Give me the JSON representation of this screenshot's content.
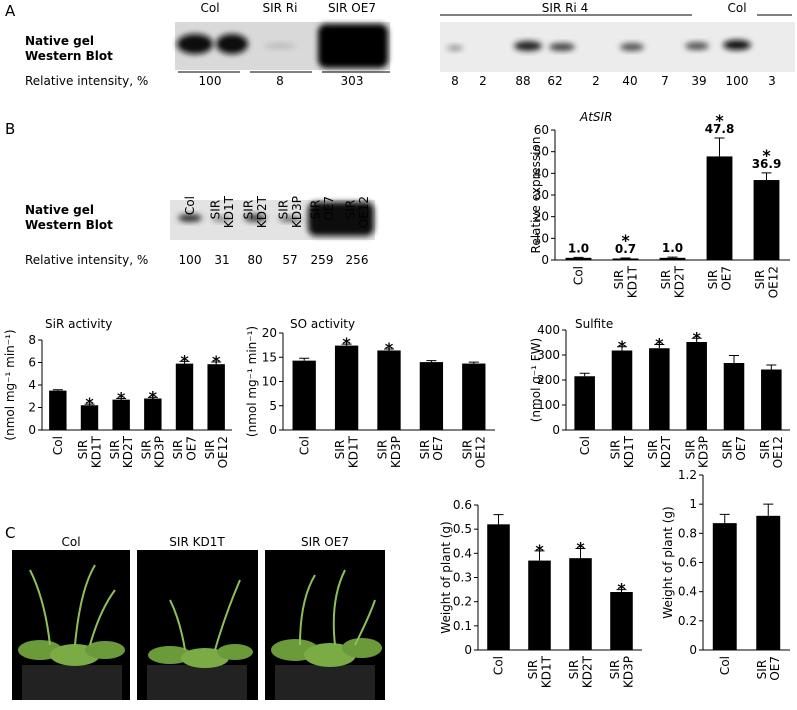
{
  "panel_labels": [
    "A",
    "B",
    "C"
  ],
  "panel_a": {
    "blot_label": [
      "Native gel",
      "Western Blot"
    ],
    "intensity_label": "Relative intensity, %",
    "left_lanes": [
      "Col",
      "SIR Ri",
      "SIR OE7"
    ],
    "left_values": [
      100,
      8,
      303
    ],
    "right_header": "SIR Ri 4",
    "right_col": "Col",
    "right_values": [
      8,
      2,
      88,
      62,
      2,
      40,
      7,
      39,
      100,
      3
    ]
  },
  "panel_b": {
    "blot_label": [
      "Native gel",
      "Western Blot"
    ],
    "intensity_label": "Relative intensity, %",
    "lanes": [
      "Col",
      "SIR KD1T",
      "SIR KD2T",
      "SIR KD3P",
      "SIR OE7",
      "SIR OE12"
    ],
    "values": [
      100,
      31,
      80,
      57,
      259,
      256
    ]
  },
  "panel_c": {
    "photo_captions": [
      "Col",
      "SIR KD1T",
      "SIR OE7"
    ]
  },
  "chart_data": [
    {
      "type": "bar",
      "title": "AtSIR",
      "ylabel": "Relative expression",
      "categories": [
        "Col",
        "SIR KD1T",
        "SIR KD2T",
        "SIR OE7",
        "SIR OE12"
      ],
      "values": [
        1.0,
        0.7,
        1.0,
        47.8,
        36.9
      ],
      "value_labels": [
        "1.0",
        "0.7",
        "1.0",
        "47.8",
        "36.9"
      ],
      "errors": [
        0.2,
        0.2,
        0.3,
        8.5,
        3.3
      ],
      "significant": [
        1,
        3,
        4
      ],
      "significance_label": "*",
      "color": "#000000",
      "ylim": [
        0,
        60
      ],
      "yticks": [
        0,
        10,
        20,
        30,
        40,
        50,
        60
      ]
    },
    {
      "type": "bar",
      "title": "SiR activity",
      "ylabel": "(nmol mg⁻¹ min⁻¹)",
      "categories": [
        "Col",
        "SIR KD1T",
        "SIR KD2T",
        "SIR KD3P",
        "SIR OE7",
        "SIR OE12"
      ],
      "values": [
        3.5,
        2.2,
        2.7,
        2.8,
        5.9,
        5.85
      ],
      "errors": [
        0.08,
        0.1,
        0.1,
        0.1,
        0.2,
        0.2
      ],
      "significant": [
        1,
        2,
        3,
        4,
        5
      ],
      "significance_label": "*",
      "color": "#000000",
      "ylim": [
        0,
        8
      ],
      "yticks": [
        0,
        2,
        4,
        6,
        8
      ]
    },
    {
      "type": "bar",
      "title": "SO activity",
      "ylabel": "(nmol mg⁻¹ min⁻¹)",
      "categories": [
        "Col",
        "SIR KD1T",
        "SIR KD3P",
        "SIR OE7",
        "SIR OE12"
      ],
      "values": [
        14.3,
        17.4,
        16.4,
        14.0,
        13.7
      ],
      "errors": [
        0.5,
        0.3,
        0.3,
        0.3,
        0.3
      ],
      "significant": [
        1,
        2
      ],
      "significance_label": "*",
      "color": "#000000",
      "ylim": [
        0,
        20
      ],
      "yticks": [
        0,
        5,
        10,
        15,
        20
      ]
    },
    {
      "type": "bar",
      "title": "Sulfite",
      "ylabel": "(nmol g⁻¹ FW)",
      "categories": [
        "Col",
        "SIR KD1T",
        "SIR KD2T",
        "SIR KD3P",
        "SIR OE7",
        "SIR OE12"
      ],
      "values": [
        215,
        318,
        327,
        352,
        268,
        242
      ],
      "errors": [
        12,
        15,
        15,
        15,
        30,
        18
      ],
      "significant": [
        1,
        2,
        3
      ],
      "significance_label": "*",
      "color": "#000000",
      "ylim": [
        0,
        400
      ],
      "yticks": [
        0,
        100,
        200,
        300,
        400
      ]
    },
    {
      "type": "bar",
      "ylabel": "Weight of plant (g)",
      "categories": [
        "Col",
        "SIR KD1T",
        "SIR KD2T",
        "SIR KD3P"
      ],
      "values": [
        0.52,
        0.37,
        0.38,
        0.24
      ],
      "errors": [
        0.04,
        0.04,
        0.04,
        0.01
      ],
      "significant": [
        1,
        2,
        3
      ],
      "significance_label": "*",
      "color": "#000000",
      "ylim": [
        0,
        0.6
      ],
      "yticks": [
        0,
        0.1,
        0.2,
        0.3,
        0.4,
        0.5,
        0.6
      ]
    },
    {
      "type": "bar",
      "ylabel": "Weight of plant (g)",
      "categories": [
        "Col",
        "SIR OE7"
      ],
      "values": [
        0.87,
        0.92
      ],
      "errors": [
        0.06,
        0.08
      ],
      "color": "#000000",
      "ylim": [
        0,
        1.2
      ],
      "yticks": [
        0,
        0.2,
        0.4,
        0.6,
        0.8,
        1,
        1.2
      ]
    }
  ]
}
